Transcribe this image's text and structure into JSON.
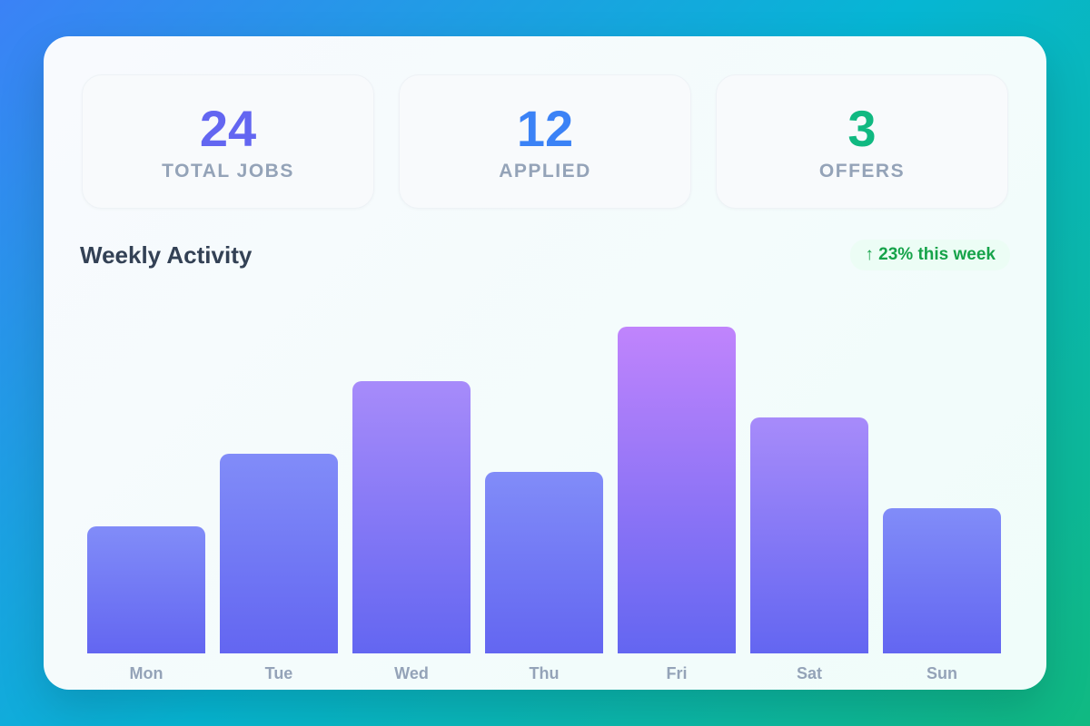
{
  "stats": [
    {
      "value": "24",
      "label": "TOTAL JOBS",
      "color": "#6366f1"
    },
    {
      "value": "12",
      "label": "APPLIED",
      "color": "#3b82f6"
    },
    {
      "value": "3",
      "label": "OFFERS",
      "color": "#10b981"
    }
  ],
  "section": {
    "title": "Weekly Activity",
    "badge": "↑ 23% this week"
  },
  "chart_data": {
    "type": "bar",
    "title": "Weekly Activity",
    "categories": [
      "Mon",
      "Tue",
      "Wed",
      "Thu",
      "Fri",
      "Sat",
      "Sun"
    ],
    "values": [
      35,
      55,
      75,
      50,
      90,
      65,
      40
    ],
    "ylim": [
      0,
      100
    ],
    "grid": false,
    "bar_top_colors": [
      "#818cf8",
      "#818cf8",
      "#a78bfa",
      "#818cf8",
      "#c084fc",
      "#a78bfa",
      "#818cf8"
    ],
    "bar_bottom_color": "#6366f1"
  }
}
